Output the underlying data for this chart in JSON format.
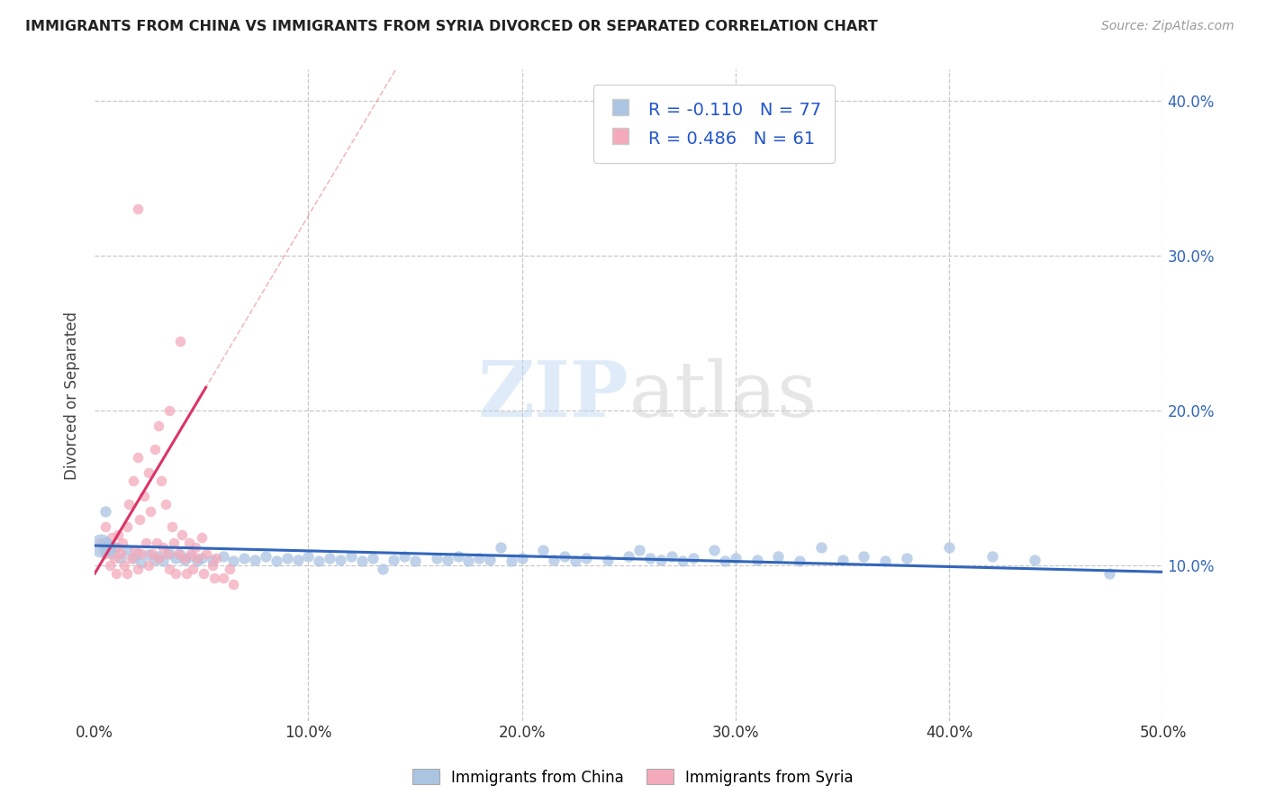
{
  "title": "IMMIGRANTS FROM CHINA VS IMMIGRANTS FROM SYRIA DIVORCED OR SEPARATED CORRELATION CHART",
  "source": "Source: ZipAtlas.com",
  "ylabel": "Divorced or Separated",
  "xlabel": "",
  "xlim": [
    0.0,
    0.5
  ],
  "ylim": [
    0.0,
    0.42
  ],
  "xticks": [
    0.0,
    0.1,
    0.2,
    0.3,
    0.4,
    0.5
  ],
  "yticks": [
    0.1,
    0.2,
    0.3,
    0.4
  ],
  "xticklabels": [
    "0.0%",
    "10.0%",
    "20.0%",
    "30.0%",
    "40.0%",
    "50.0%"
  ],
  "yticklabels": [
    "10.0%",
    "20.0%",
    "30.0%",
    "40.0%"
  ],
  "legend_labels": [
    "Immigrants from China",
    "Immigrants from Syria"
  ],
  "china_color": "#aac4e2",
  "syria_color": "#f4aabb",
  "china_R": -0.11,
  "china_N": 77,
  "syria_R": 0.486,
  "syria_N": 61,
  "china_line_color": "#3366bb",
  "syria_line_color": "#dd3366",
  "syria_dashed_color": "#e89090",
  "watermark_zip": "ZIP",
  "watermark_atlas": "atlas",
  "china_scatter": [
    [
      0.005,
      0.115
    ],
    [
      0.008,
      0.108
    ],
    [
      0.01,
      0.112
    ],
    [
      0.012,
      0.105
    ],
    [
      0.015,
      0.11
    ],
    [
      0.018,
      0.105
    ],
    [
      0.02,
      0.108
    ],
    [
      0.022,
      0.102
    ],
    [
      0.025,
      0.107
    ],
    [
      0.028,
      0.104
    ],
    [
      0.03,
      0.106
    ],
    [
      0.032,
      0.103
    ],
    [
      0.035,
      0.108
    ],
    [
      0.038,
      0.105
    ],
    [
      0.04,
      0.107
    ],
    [
      0.042,
      0.104
    ],
    [
      0.045,
      0.106
    ],
    [
      0.048,
      0.103
    ],
    [
      0.05,
      0.105
    ],
    [
      0.055,
      0.104
    ],
    [
      0.06,
      0.106
    ],
    [
      0.065,
      0.103
    ],
    [
      0.07,
      0.105
    ],
    [
      0.075,
      0.104
    ],
    [
      0.08,
      0.106
    ],
    [
      0.085,
      0.103
    ],
    [
      0.09,
      0.105
    ],
    [
      0.095,
      0.104
    ],
    [
      0.1,
      0.106
    ],
    [
      0.105,
      0.103
    ],
    [
      0.11,
      0.105
    ],
    [
      0.115,
      0.104
    ],
    [
      0.12,
      0.106
    ],
    [
      0.125,
      0.103
    ],
    [
      0.13,
      0.105
    ],
    [
      0.135,
      0.098
    ],
    [
      0.14,
      0.104
    ],
    [
      0.145,
      0.106
    ],
    [
      0.15,
      0.103
    ],
    [
      0.16,
      0.105
    ],
    [
      0.165,
      0.104
    ],
    [
      0.17,
      0.106
    ],
    [
      0.175,
      0.103
    ],
    [
      0.18,
      0.105
    ],
    [
      0.185,
      0.104
    ],
    [
      0.19,
      0.112
    ],
    [
      0.195,
      0.103
    ],
    [
      0.2,
      0.105
    ],
    [
      0.21,
      0.11
    ],
    [
      0.215,
      0.104
    ],
    [
      0.22,
      0.106
    ],
    [
      0.225,
      0.103
    ],
    [
      0.23,
      0.105
    ],
    [
      0.24,
      0.104
    ],
    [
      0.25,
      0.106
    ],
    [
      0.255,
      0.11
    ],
    [
      0.26,
      0.105
    ],
    [
      0.265,
      0.104
    ],
    [
      0.27,
      0.106
    ],
    [
      0.275,
      0.103
    ],
    [
      0.28,
      0.105
    ],
    [
      0.29,
      0.11
    ],
    [
      0.295,
      0.103
    ],
    [
      0.3,
      0.105
    ],
    [
      0.31,
      0.104
    ],
    [
      0.32,
      0.106
    ],
    [
      0.33,
      0.103
    ],
    [
      0.34,
      0.112
    ],
    [
      0.35,
      0.104
    ],
    [
      0.36,
      0.106
    ],
    [
      0.37,
      0.103
    ],
    [
      0.38,
      0.105
    ],
    [
      0.4,
      0.112
    ],
    [
      0.42,
      0.106
    ],
    [
      0.44,
      0.104
    ],
    [
      0.475,
      0.095
    ],
    [
      0.005,
      0.135
    ]
  ],
  "syria_scatter": [
    [
      0.003,
      0.115
    ],
    [
      0.005,
      0.108
    ],
    [
      0.005,
      0.125
    ],
    [
      0.007,
      0.1
    ],
    [
      0.008,
      0.118
    ],
    [
      0.009,
      0.105
    ],
    [
      0.01,
      0.112
    ],
    [
      0.01,
      0.095
    ],
    [
      0.011,
      0.12
    ],
    [
      0.012,
      0.108
    ],
    [
      0.013,
      0.115
    ],
    [
      0.014,
      0.1
    ],
    [
      0.015,
      0.125
    ],
    [
      0.015,
      0.095
    ],
    [
      0.016,
      0.14
    ],
    [
      0.017,
      0.105
    ],
    [
      0.018,
      0.155
    ],
    [
      0.019,
      0.11
    ],
    [
      0.02,
      0.17
    ],
    [
      0.02,
      0.098
    ],
    [
      0.021,
      0.13
    ],
    [
      0.022,
      0.108
    ],
    [
      0.023,
      0.145
    ],
    [
      0.024,
      0.115
    ],
    [
      0.025,
      0.16
    ],
    [
      0.025,
      0.1
    ],
    [
      0.026,
      0.135
    ],
    [
      0.027,
      0.108
    ],
    [
      0.028,
      0.175
    ],
    [
      0.029,
      0.115
    ],
    [
      0.03,
      0.19
    ],
    [
      0.03,
      0.105
    ],
    [
      0.031,
      0.155
    ],
    [
      0.032,
      0.112
    ],
    [
      0.033,
      0.14
    ],
    [
      0.034,
      0.108
    ],
    [
      0.035,
      0.2
    ],
    [
      0.035,
      0.098
    ],
    [
      0.036,
      0.125
    ],
    [
      0.037,
      0.115
    ],
    [
      0.038,
      0.095
    ],
    [
      0.039,
      0.108
    ],
    [
      0.04,
      0.245
    ],
    [
      0.041,
      0.12
    ],
    [
      0.042,
      0.105
    ],
    [
      0.043,
      0.095
    ],
    [
      0.044,
      0.115
    ],
    [
      0.045,
      0.108
    ],
    [
      0.046,
      0.098
    ],
    [
      0.047,
      0.112
    ],
    [
      0.048,
      0.105
    ],
    [
      0.05,
      0.118
    ],
    [
      0.051,
      0.095
    ],
    [
      0.052,
      0.108
    ],
    [
      0.055,
      0.1
    ],
    [
      0.056,
      0.092
    ],
    [
      0.057,
      0.105
    ],
    [
      0.06,
      0.092
    ],
    [
      0.063,
      0.098
    ],
    [
      0.065,
      0.088
    ],
    [
      0.02,
      0.33
    ]
  ]
}
